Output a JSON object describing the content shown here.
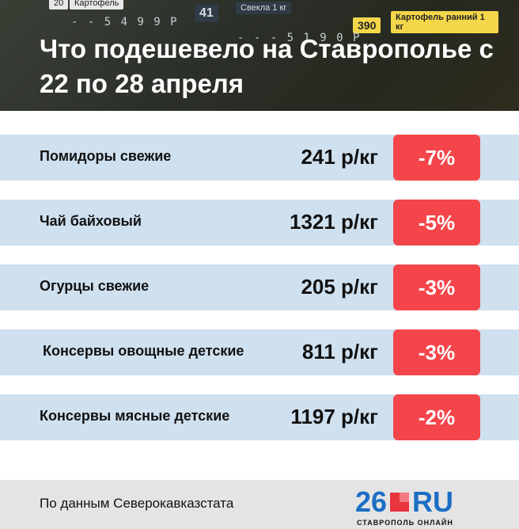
{
  "header": {
    "title": "Что подешевело на Ставрополье с 22 по 28 апреля",
    "photo_tags": [
      {
        "text": "20"
      },
      {
        "text": "Картофель"
      },
      {
        "text": "41"
      },
      {
        "text": "Свекла 1 кг"
      },
      {
        "text": "390"
      },
      {
        "text": "Картофель ранний 1 кг"
      }
    ],
    "photo_prices": [
      "- - 5 4 9 9 Р",
      "- - - 5 1 9 0 Р"
    ]
  },
  "rows": [
    {
      "name": "Помидоры свежие",
      "price": "241 р/кг",
      "change": "-7%"
    },
    {
      "name": "Чай байховый",
      "price": "1321 р/кг",
      "change": "-5%"
    },
    {
      "name": "Огурцы свежие",
      "price": "205 р/кг",
      "change": "-3%"
    },
    {
      "name": "Консервы овощные детские",
      "price": "811 р/кг",
      "change": "-3%"
    },
    {
      "name": "Консервы мясные детские",
      "price": "1197 р/кг",
      "change": "-2%"
    }
  ],
  "footer": {
    "source": "По данным Северокавказстата",
    "logo_number": "26",
    "logo_domain": "RU",
    "logo_subtitle": "СТАВРОПОЛЬ ОНЛАЙН"
  },
  "colors": {
    "row_bg": "#cfe0ef",
    "badge": "#f4454b",
    "logo_blue": "#1c6ec4",
    "logo_red": "#e8343d"
  }
}
